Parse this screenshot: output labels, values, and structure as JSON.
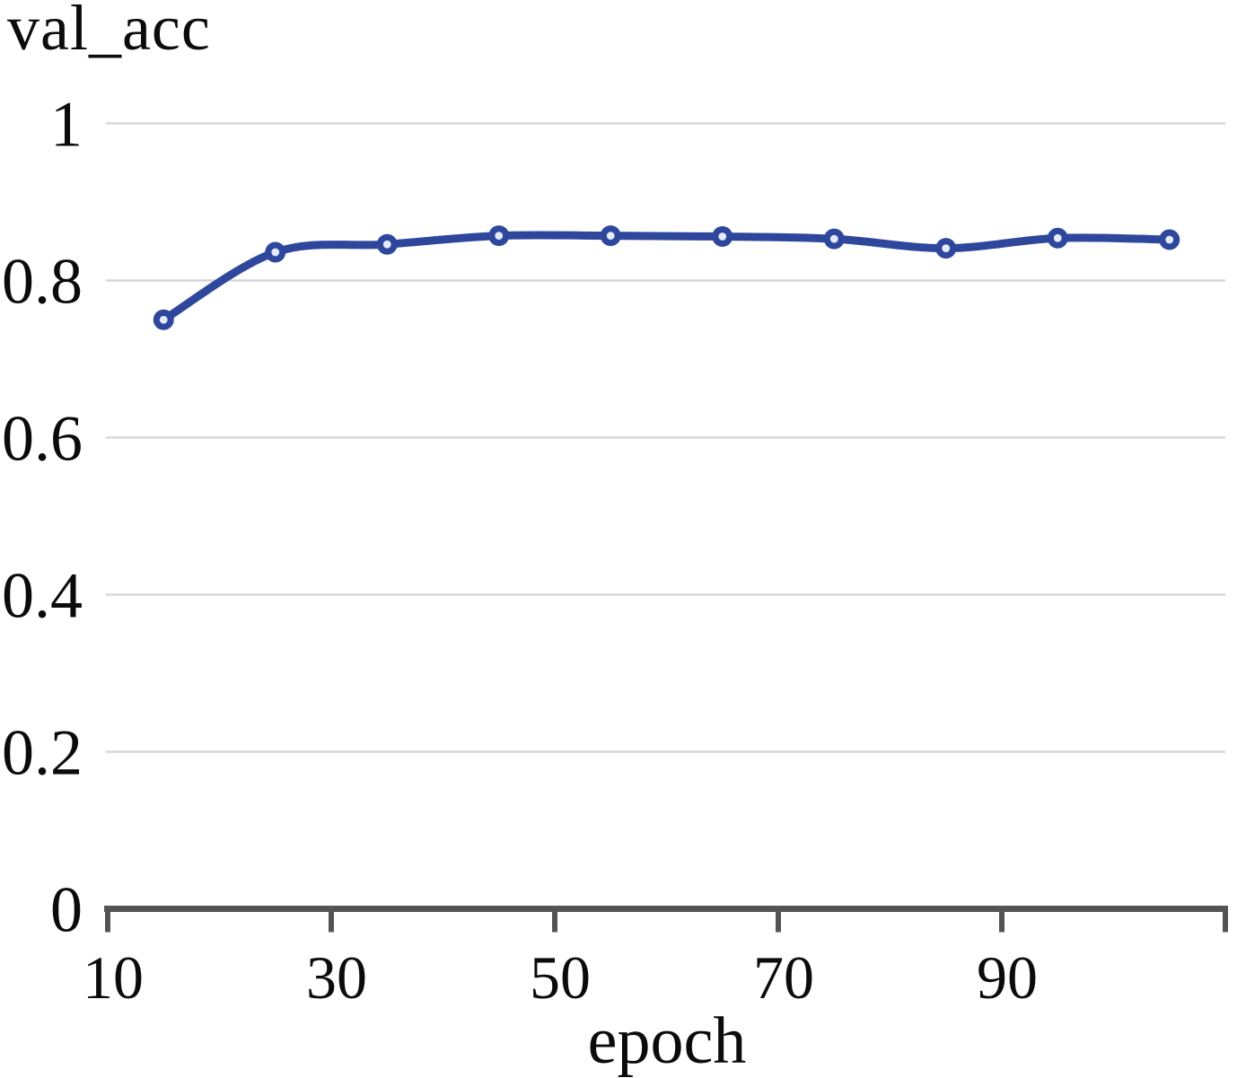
{
  "title": "val_acc",
  "chart_data": {
    "type": "line",
    "title": "val_acc",
    "xlabel": "epoch",
    "ylabel": "",
    "x": [
      15,
      25,
      35,
      45,
      55,
      65,
      75,
      85,
      95,
      105
    ],
    "series": [
      {
        "name": "val_acc",
        "values": [
          0.75,
          0.836,
          0.846,
          0.857,
          0.857,
          0.856,
          0.853,
          0.841,
          0.854,
          0.852
        ]
      }
    ],
    "xlim": [
      10,
      110
    ],
    "ylim": [
      0,
      1
    ],
    "x_ticks": [
      10,
      30,
      50,
      70,
      90
    ],
    "y_ticks": [
      "1",
      "0.8",
      "0.6",
      "0.4",
      "0.2",
      "0"
    ],
    "grid": true,
    "legend": false,
    "marker_style": "circle-open",
    "colors": {
      "line": "#2e479c",
      "marker_ring": "#2e479c",
      "marker_center": "#e4ebfa",
      "gridline": "#d7d7dc",
      "axis": "#545457",
      "text": "#0b0b0b"
    }
  }
}
